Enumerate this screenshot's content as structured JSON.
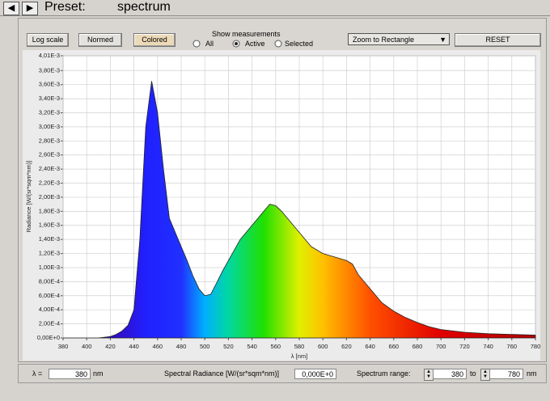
{
  "toolbar": {
    "preset_label": "Preset:",
    "preset_name": "spectrum"
  },
  "controls": {
    "buttons": [
      "Log scale",
      "Normed",
      "Colored"
    ],
    "measurements_title": "Show measurements",
    "radios": [
      "All",
      "Active",
      "Selected"
    ],
    "zoom_mode": "Zoom to Rectangle",
    "reset": "RESET"
  },
  "chart_data": {
    "type": "area",
    "xlabel": "λ [nm]",
    "ylabel": "Radiance [W/(sr*sqm*nm)]",
    "x": [
      380,
      390,
      400,
      410,
      415,
      420,
      425,
      430,
      435,
      440,
      445,
      450,
      455,
      460,
      465,
      470,
      475,
      480,
      485,
      490,
      495,
      500,
      505,
      510,
      515,
      520,
      530,
      540,
      550,
      555,
      560,
      565,
      570,
      580,
      590,
      600,
      610,
      620,
      625,
      630,
      640,
      650,
      660,
      670,
      680,
      690,
      700,
      720,
      740,
      760,
      780
    ],
    "values": [
      0,
      0,
      0,
      0,
      1e-05,
      2e-05,
      5e-05,
      0.0001,
      0.00018,
      0.0004,
      0.0014,
      0.003,
      0.00365,
      0.0032,
      0.0024,
      0.0017,
      0.0015,
      0.0013,
      0.0011,
      0.00088,
      0.0007,
      0.0006,
      0.00062,
      0.00078,
      0.00095,
      0.0011,
      0.0014,
      0.0016,
      0.0018,
      0.0019,
      0.00188,
      0.0018,
      0.0017,
      0.0015,
      0.0013,
      0.0012,
      0.00115,
      0.0011,
      0.00105,
      0.0009,
      0.0007,
      0.0005,
      0.00038,
      0.00029,
      0.00022,
      0.00016,
      0.00012,
      8e-05,
      6e-05,
      5e-05,
      4e-05
    ],
    "xlim": [
      380,
      780
    ],
    "xticks": [
      380,
      400,
      420,
      440,
      460,
      480,
      500,
      520,
      540,
      560,
      580,
      600,
      620,
      640,
      660,
      680,
      700,
      720,
      740,
      760,
      780
    ],
    "ylim": [
      0,
      0.00401
    ],
    "yticks": [
      {
        "value": 0,
        "label": "0,00E+0"
      },
      {
        "value": 0.0002,
        "label": "2,00E-4"
      },
      {
        "value": 0.0004,
        "label": "4,00E-4"
      },
      {
        "value": 0.0006,
        "label": "6,00E-4"
      },
      {
        "value": 0.0008,
        "label": "8,00E-4"
      },
      {
        "value": 0.001,
        "label": "1,00E-3"
      },
      {
        "value": 0.0012,
        "label": "1,20E-3"
      },
      {
        "value": 0.0014,
        "label": "1,40E-3"
      },
      {
        "value": 0.0016,
        "label": "1,60E-3"
      },
      {
        "value": 0.0018,
        "label": "1,80E-3"
      },
      {
        "value": 0.002,
        "label": "2,00E-3"
      },
      {
        "value": 0.0022,
        "label": "2,20E-3"
      },
      {
        "value": 0.0024,
        "label": "2,40E-3"
      },
      {
        "value": 0.0026,
        "label": "2,60E-3"
      },
      {
        "value": 0.0028,
        "label": "2,80E-3"
      },
      {
        "value": 0.003,
        "label": "3,00E-3"
      },
      {
        "value": 0.0032,
        "label": "3,20E-3"
      },
      {
        "value": 0.0034,
        "label": "3,40E-3"
      },
      {
        "value": 0.0036,
        "label": "3,60E-3"
      },
      {
        "value": 0.0038,
        "label": "3,80E-3"
      },
      {
        "value": 0.00401,
        "label": "4,01E-3"
      }
    ],
    "grid": true
  },
  "footer": {
    "lambda_label": "λ =",
    "lambda_value": "380",
    "lambda_unit": "nm",
    "radiance_label": "Spectral Radiance [W/(sr*sqm*nm)]",
    "radiance_value": "0,000E+0",
    "range_label": "Spectrum range:",
    "range_from": "380",
    "range_to_label": "to",
    "range_to": "780",
    "range_unit": "nm"
  }
}
